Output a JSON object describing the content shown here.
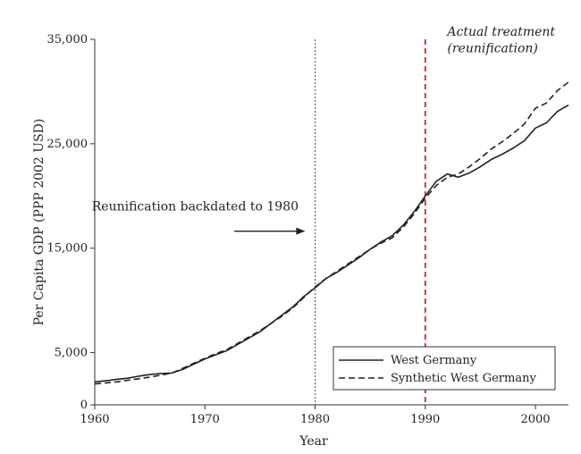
{
  "chart_data": {
    "type": "line",
    "title": "",
    "xlabel": "Year",
    "ylabel": "Per Capita GDP (PPP 2002 USD)",
    "xlim": [
      1960,
      2003
    ],
    "ylim": [
      0,
      35000
    ],
    "x_ticks": [
      1960,
      1970,
      1980,
      1990,
      2000
    ],
    "x_tick_labels": [
      "1960",
      "1970",
      "1980",
      "1990",
      "2000"
    ],
    "y_ticks": [
      0,
      5000,
      15000,
      25000,
      35000
    ],
    "y_tick_labels": [
      "0",
      "5,000",
      "15,000",
      "25,000",
      "35,000"
    ],
    "grid": false,
    "legend_position": "bottom-right",
    "series": [
      {
        "name": "West Germany",
        "style": "solid",
        "color": "#222222",
        "x": [
          1960,
          1961,
          1962,
          1963,
          1964,
          1965,
          1966,
          1967,
          1968,
          1969,
          1970,
          1971,
          1972,
          1973,
          1974,
          1975,
          1976,
          1977,
          1978,
          1979,
          1980,
          1981,
          1982,
          1983,
          1984,
          1985,
          1986,
          1987,
          1988,
          1989,
          1990,
          1991,
          1992,
          1993,
          1994,
          1995,
          1996,
          1997,
          1998,
          1999,
          2000,
          2001,
          2002,
          2003
        ],
        "values": [
          2200,
          2300,
          2450,
          2550,
          2750,
          2900,
          3000,
          3050,
          3400,
          3900,
          4400,
          4800,
          5200,
          5800,
          6400,
          7000,
          7800,
          8600,
          9400,
          10400,
          11200,
          12100,
          12700,
          13400,
          14100,
          14900,
          15600,
          16200,
          17200,
          18500,
          20000,
          21400,
          22100,
          21800,
          22200,
          22800,
          23500,
          24000,
          24600,
          25300,
          26500,
          27000,
          28100,
          28700
        ]
      },
      {
        "name": "Synthetic West Germany",
        "style": "dashed",
        "color": "#222222",
        "x": [
          1960,
          1961,
          1962,
          1963,
          1964,
          1965,
          1966,
          1967,
          1968,
          1969,
          1970,
          1971,
          1972,
          1973,
          1974,
          1975,
          1976,
          1977,
          1978,
          1979,
          1980,
          1981,
          1982,
          1983,
          1984,
          1985,
          1986,
          1987,
          1988,
          1989,
          1990,
          1991,
          1992,
          1993,
          1994,
          1995,
          1996,
          1997,
          1998,
          1999,
          2000,
          2001,
          2002,
          2003
        ],
        "values": [
          2000,
          2100,
          2200,
          2350,
          2500,
          2650,
          2850,
          3050,
          3500,
          4000,
          4450,
          4900,
          5300,
          5900,
          6500,
          7100,
          7800,
          8500,
          9300,
          10300,
          11300,
          12100,
          12800,
          13500,
          14200,
          14900,
          15500,
          16000,
          17000,
          18300,
          19800,
          21000,
          21800,
          22100,
          22800,
          23600,
          24500,
          25200,
          26000,
          26900,
          28400,
          28900,
          30100,
          30900
        ]
      }
    ],
    "vertical_lines": [
      {
        "x": 1980,
        "style": "dotted",
        "color": "#555555"
      },
      {
        "x": 1990,
        "style": "dashed",
        "color": "#d0212b"
      }
    ],
    "annotations": [
      {
        "text": "Reunification backdated to 1980",
        "x": 1978.5,
        "y": 18600,
        "anchor": "end"
      },
      {
        "text": "Actual treatment",
        "x": 1992.0,
        "y": 35000,
        "italic": true
      },
      {
        "text": "(reunification)",
        "x": 1992.0,
        "y": 33400,
        "italic": true
      }
    ]
  }
}
